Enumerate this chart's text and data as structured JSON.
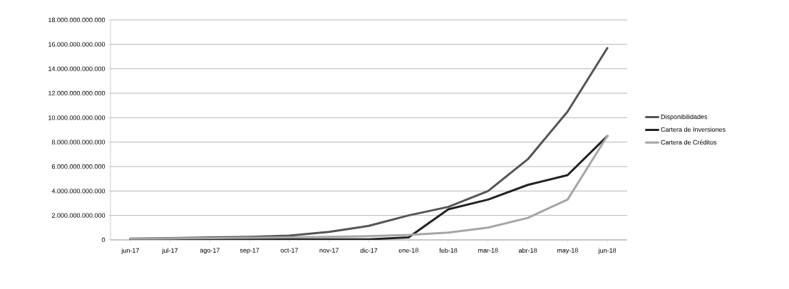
{
  "chart_data": {
    "type": "line",
    "categories": [
      "jun-17",
      "jul-17",
      "ago-17",
      "sep-17",
      "oct-17",
      "nov-17",
      "dic-17",
      "ene-18",
      "feb-18",
      "mar-18",
      "abr-18",
      "may-18",
      "jun-18"
    ],
    "series": [
      {
        "name": "Disponibilidades",
        "color": "#555555",
        "values": [
          100000000000,
          150000000000,
          200000000000,
          250000000000,
          350000000000,
          650000000000,
          1150000000000,
          2000000000000,
          2700000000000,
          4000000000000,
          6600000000000,
          10500000000000,
          15700000000000
        ]
      },
      {
        "name": "Cartera de Inversiones",
        "color": "#222222",
        "values": [
          50000000000,
          50000000000,
          50000000000,
          50000000000,
          50000000000,
          50000000000,
          50000000000,
          200000000000,
          2500000000000,
          3300000000000,
          4500000000000,
          5300000000000,
          8500000000000
        ]
      },
      {
        "name": "Cartera de Créditos",
        "color": "#a6a6a6",
        "values": [
          100000000000,
          120000000000,
          150000000000,
          170000000000,
          200000000000,
          250000000000,
          300000000000,
          400000000000,
          600000000000,
          1000000000000,
          1800000000000,
          3300000000000,
          8500000000000
        ]
      }
    ],
    "ylim": [
      0,
      18000000000000
    ],
    "yticks": [
      0,
      {
        "value": 2000000000000,
        "label": "2.000.000.000.000"
      },
      {
        "value": 4000000000000,
        "label": "4.000.000.000.000"
      },
      {
        "value": 6000000000000,
        "label": "6.000.000.000.000"
      },
      {
        "value": 8000000000000,
        "label": "8.000.000.000.000"
      },
      {
        "value": 10000000000000,
        "label": "10.000.000.000.000"
      },
      {
        "value": 12000000000000,
        "label": "12.000.000.000.000"
      },
      {
        "value": 14000000000000,
        "label": "14.000.000.000.000"
      },
      {
        "value": 16000000000000,
        "label": "16.000.000.000.000"
      },
      {
        "value": 18000000000000,
        "label": "18.000.000.000.000"
      }
    ],
    "grid": "y",
    "legend": "right",
    "marker": "none",
    "line_style": "solid"
  }
}
